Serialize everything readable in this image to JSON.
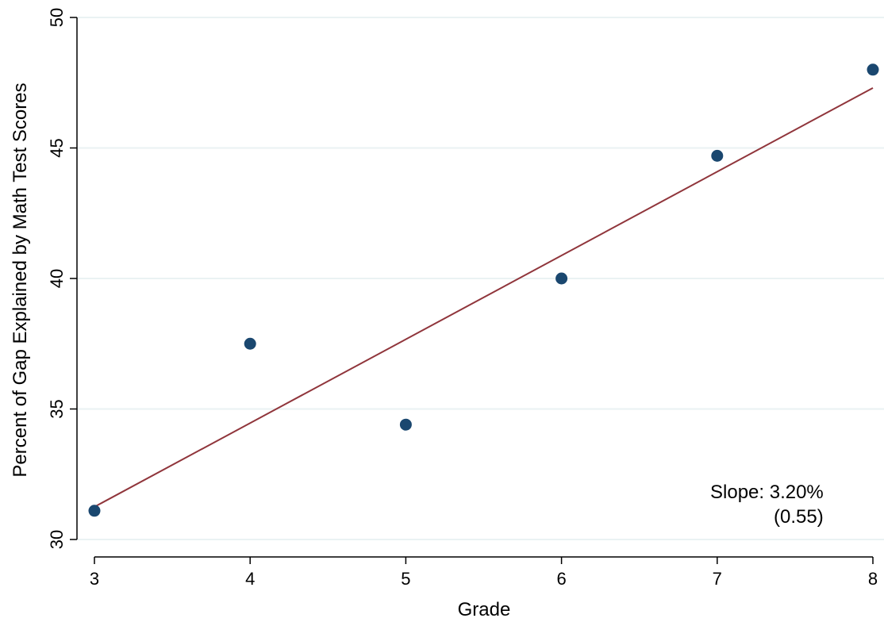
{
  "chart_data": {
    "type": "scatter",
    "title": "",
    "xlabel": "Grade",
    "ylabel": "Percent of Gap Explained by Math Test Scores",
    "xlim": [
      3,
      8
    ],
    "ylim": [
      30,
      50
    ],
    "x_ticks": [
      3,
      4,
      5,
      6,
      7,
      8
    ],
    "y_ticks": [
      30,
      35,
      40,
      45,
      50
    ],
    "grid": "horizontal",
    "series": [
      {
        "points": [
          {
            "x": 3,
            "y": 31.1
          },
          {
            "x": 4,
            "y": 37.5
          },
          {
            "x": 5,
            "y": 34.4
          },
          {
            "x": 6,
            "y": 40.0
          },
          {
            "x": 7,
            "y": 44.7
          },
          {
            "x": 8,
            "y": 48.0
          }
        ]
      }
    ],
    "fit_line": {
      "x": [
        3,
        8
      ],
      "y": [
        31.25,
        47.3
      ]
    },
    "annotation": {
      "line1": "Slope: 3.20%",
      "line2": "(0.55)"
    },
    "colors": {
      "points": "#1a476f",
      "fit_line": "#90353b",
      "grid": "#eaf2f3"
    }
  }
}
